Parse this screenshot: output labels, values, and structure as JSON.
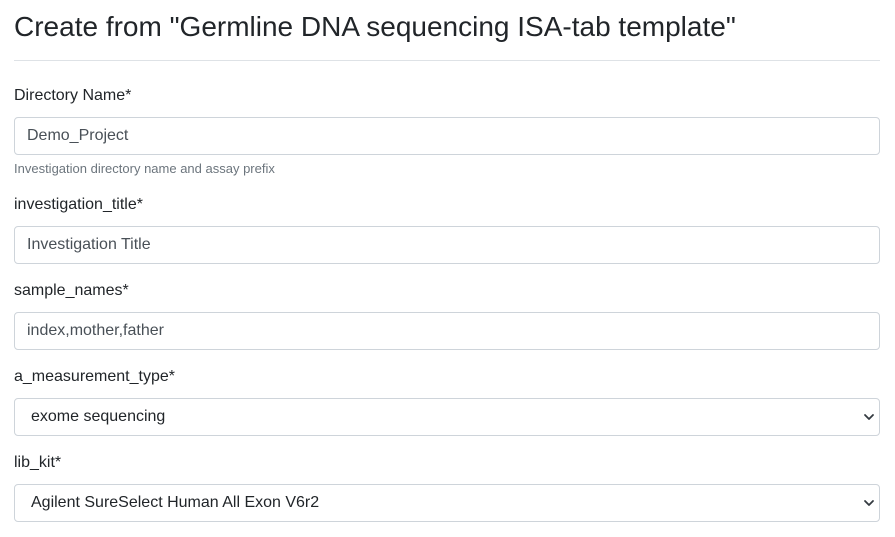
{
  "page": {
    "title": "Create from \"Germline DNA sequencing ISA-tab template\""
  },
  "form": {
    "directory_name": {
      "label": "Directory Name*",
      "value": "Demo_Project",
      "help": "Investigation directory name and assay prefix"
    },
    "investigation_title": {
      "label": "investigation_title*",
      "value": "Investigation Title"
    },
    "sample_names": {
      "label": "sample_names*",
      "value": "index,mother,father"
    },
    "a_measurement_type": {
      "label": "a_measurement_type*",
      "value": "exome sequencing",
      "icon": "chevron-down-icon"
    },
    "lib_kit": {
      "label": "lib_kit*",
      "value": "Agilent SureSelect Human All Exon V6r2",
      "icon": "chevron-down-icon"
    }
  },
  "colors": {
    "border": "#ced4da",
    "rule": "#dee2e6",
    "help_text": "#6c757d",
    "text": "#212529"
  }
}
